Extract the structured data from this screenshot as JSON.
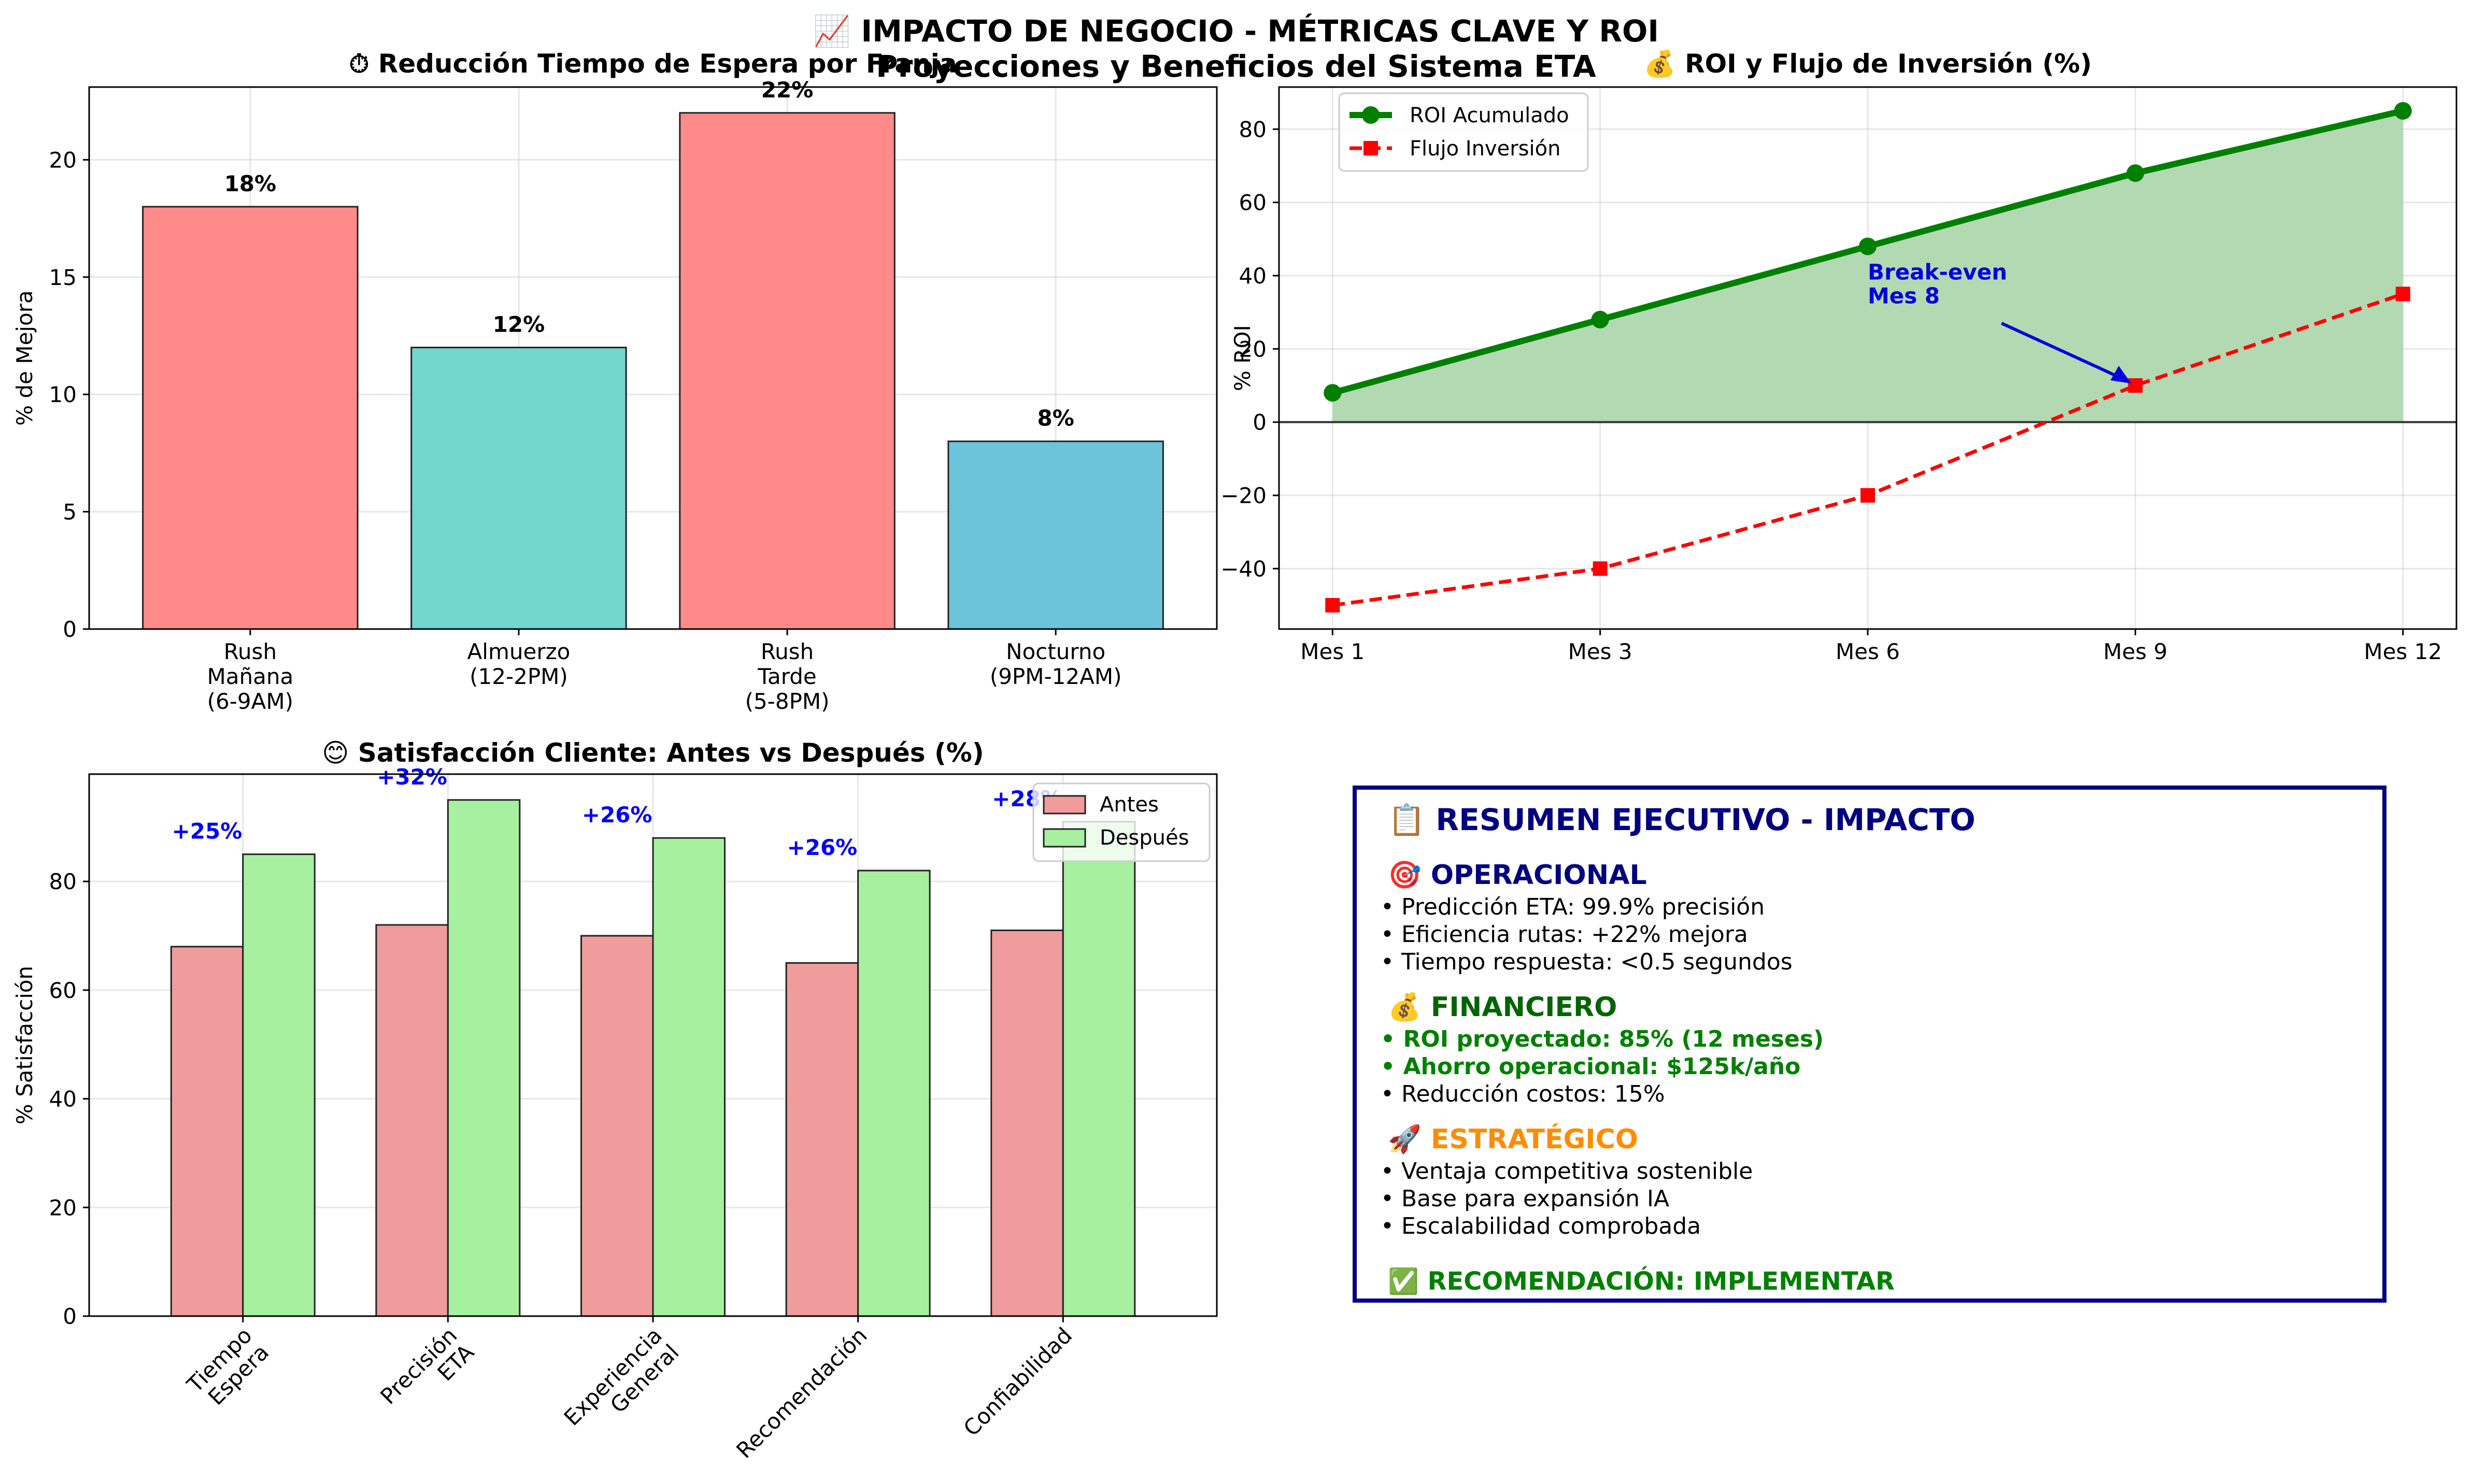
{
  "suptitle": {
    "line1": "📈 IMPACTO DE NEGOCIO - MÉTRICAS CLAVE Y ROI",
    "line2": "Proyecciones y Beneficios del Sistema ETA"
  },
  "chart_data": [
    {
      "type": "bar",
      "title": "⏱ Reducción Tiempo de Espera por Franja",
      "xlabel": "",
      "ylabel": "% de Mejora",
      "categories": [
        "Rush\nMañana\n(6-9AM)",
        "Almuerzo\n(12-2PM)",
        "Rush\nTarde\n(5-8PM)",
        "Nocturno\n(9PM-12AM)"
      ],
      "values": [
        18,
        12,
        22,
        8
      ],
      "value_labels": [
        "18%",
        "12%",
        "22%",
        "8%"
      ],
      "colors": [
        "#ff8a8a",
        "#72d6cc",
        "#ff8a8a",
        "#6bc4da"
      ],
      "yticks": [
        0,
        5,
        10,
        15,
        20
      ],
      "ylim": [
        0,
        23.1
      ],
      "grid": true
    },
    {
      "type": "line",
      "title": "💰 ROI y Flujo de Inversión (%)",
      "xlabel": "",
      "ylabel": "% ROI",
      "categories": [
        "Mes 1",
        "Mes 3",
        "Mes 6",
        "Mes 9",
        "Mes 12"
      ],
      "series": [
        {
          "name": "ROI Acumulado",
          "values": [
            8,
            28,
            48,
            68,
            85
          ],
          "color": "#008000",
          "marker": "circle",
          "style": "solid",
          "fill": "#b2d9b2"
        },
        {
          "name": "Flujo Inversión",
          "values": [
            -50,
            -40,
            -20,
            10,
            35
          ],
          "color": "#ff0000",
          "marker": "square",
          "style": "dashed"
        }
      ],
      "annotation": {
        "text": [
          "Break-even",
          "Mes 8"
        ],
        "point_index": 3,
        "color": "#0000dd"
      },
      "yticks": [
        -40,
        -20,
        0,
        20,
        40,
        60,
        80
      ],
      "ylim": [
        -56.5,
        91.5
      ],
      "legend": "top-left",
      "grid": true
    },
    {
      "type": "bar",
      "title": "😊 Satisfacción Cliente: Antes vs Después (%)",
      "xlabel": "",
      "ylabel": "% Satisfacción",
      "categories": [
        "Tiempo\nEspera",
        "Precisión\nETA",
        "Experiencia\nGeneral",
        "Recomendación",
        "Confiabilidad"
      ],
      "series": [
        {
          "name": "Antes",
          "values": [
            68,
            72,
            70,
            65,
            71
          ],
          "color": "#f09c9c"
        },
        {
          "name": "Después",
          "values": [
            85,
            95,
            88,
            82,
            91
          ],
          "color": "#a6f0a0"
        }
      ],
      "improvement_labels": [
        "+25%",
        "+32%",
        "+26%",
        "+26%",
        "+28%"
      ],
      "yticks": [
        0,
        20,
        40,
        60,
        80
      ],
      "ylim": [
        0,
        99.75
      ],
      "legend": "top-right",
      "grid": true
    }
  ],
  "summary": {
    "title": "📋 RESUMEN EJECUTIVO - IMPACTO",
    "sections": [
      {
        "heading": "🎯 OPERACIONAL",
        "color": "#000080",
        "items": [
          {
            "text": "• Predicción ETA: 99.9% precisión",
            "bold": false
          },
          {
            "text": "• Eficiencia rutas: +22% mejora",
            "bold": false
          },
          {
            "text": "• Tiempo respuesta: <0.5 segundos",
            "bold": false
          }
        ]
      },
      {
        "heading": "💰 FINANCIERO",
        "color": "#006400",
        "items": [
          {
            "text": "• ROI proyectado: 85% (12 meses)",
            "bold": true
          },
          {
            "text": "• Ahorro operacional: $125k/año",
            "bold": true
          },
          {
            "text": "• Reducción costos: 15%",
            "bold": false
          }
        ]
      },
      {
        "heading": "🚀 ESTRATÉGICO",
        "color": "#ff8c00",
        "items": [
          {
            "text": "• Ventaja competitiva sostenible",
            "bold": false
          },
          {
            "text": "• Base para expansión IA",
            "bold": false
          },
          {
            "text": "• Escalabilidad comprobada",
            "bold": false
          }
        ]
      }
    ],
    "recommendation": "✅ RECOMENDACIÓN: IMPLEMENTAR"
  }
}
